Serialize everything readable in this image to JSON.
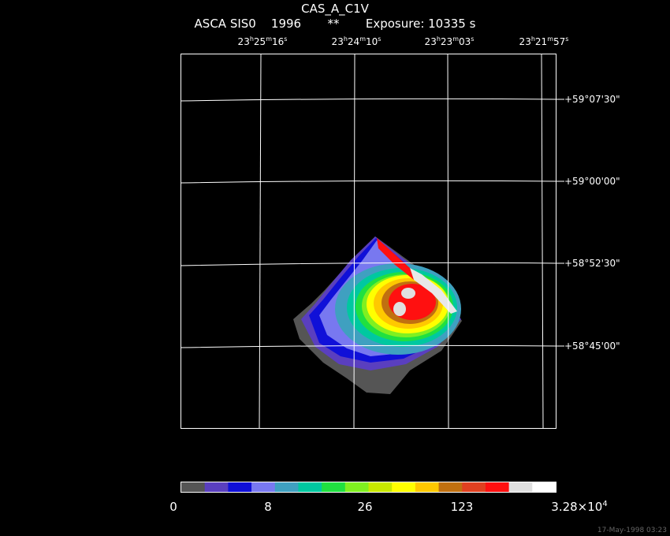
{
  "header": {
    "title": "CAS_A_C1V",
    "instrument": "ASCA SIS0",
    "year": "1996",
    "marker": "**",
    "exposure": "Exposure: 10335 s"
  },
  "ra_labels": [
    {
      "h": "23",
      "m": "25",
      "s": "16"
    },
    {
      "h": "23",
      "m": "24",
      "s": "10"
    },
    {
      "h": "23",
      "m": "23",
      "s": "03"
    },
    {
      "h": "23",
      "m": "21",
      "s": "57"
    }
  ],
  "dec_labels": [
    "+59°07'30\"",
    "+59°00'00\"",
    "+58°52'30\"",
    "+58°45'00\""
  ],
  "colorbar": {
    "colors": [
      "#555555",
      "#5a3fbf",
      "#1010d8",
      "#7878f0",
      "#3fa0c0",
      "#00c8a0",
      "#20e040",
      "#80f020",
      "#c8e800",
      "#ffff00",
      "#ffc800",
      "#c07010",
      "#e04020",
      "#ff1010",
      "#e0e0e0",
      "#ffffff"
    ],
    "labels": [
      "0",
      "8",
      "26",
      "123"
    ],
    "max_label": {
      "mantissa": "3.28×10",
      "exponent": "4"
    }
  },
  "footer": "17-May-1998 03:23",
  "icons": {
    "image": "xray-image"
  }
}
